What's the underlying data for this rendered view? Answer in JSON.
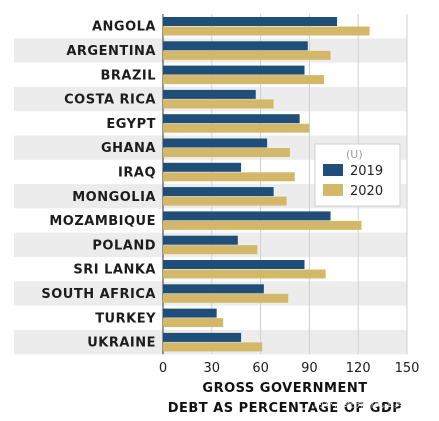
{
  "chart_data": {
    "type": "bar",
    "orientation": "horizontal",
    "categories": [
      "ANGOLA",
      "ARGENTINA",
      "BRAZIL",
      "COSTA RICA",
      "EGYPT",
      "GHANA",
      "IRAQ",
      "MONGOLIA",
      "MOZAMBIQUE",
      "POLAND",
      "SRI LANKA",
      "SOUTH AFRICA",
      "TURKEY",
      "UKRAINE"
    ],
    "series": [
      {
        "name": "2019",
        "color": "#1f4e79",
        "values": [
          107,
          89,
          87,
          57,
          84,
          64,
          48,
          68,
          103,
          46,
          87,
          62,
          33,
          48
        ]
      },
      {
        "name": "2020",
        "color": "#d4b86a",
        "values": [
          127,
          103,
          99,
          68,
          90,
          78,
          81,
          76,
          122,
          58,
          100,
          77,
          37,
          61
        ]
      }
    ],
    "xlim": [
      0,
      150
    ],
    "xticks": [
      "0",
      "30",
      "60",
      "90",
      "120",
      "150"
    ],
    "xlabel_lines": [
      "GROSS GOVERNMENT",
      "DEBT AS PERCENTAGE OF GDP"
    ],
    "legend": {
      "title": "(U)",
      "position": "right-middle"
    },
    "grid": true,
    "row_banding": true
  },
  "watermark": "阿尔法经济研究工具箱"
}
